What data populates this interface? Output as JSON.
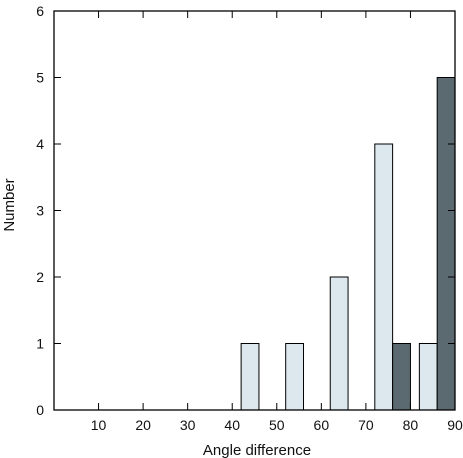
{
  "chart_data": {
    "type": "bar",
    "xlabel": "Angle difference",
    "ylabel": "Number",
    "xlim": [
      0,
      90
    ],
    "ylim": [
      0,
      6
    ],
    "x_ticks": [
      10,
      20,
      30,
      40,
      50,
      60,
      70,
      80,
      90
    ],
    "y_ticks": [
      0,
      1,
      2,
      3,
      4,
      5,
      6
    ],
    "bin_width": 10,
    "colors": {
      "series_a": "#dde8ee",
      "series_b": "#5a6a70",
      "frame": "#000000"
    },
    "series": [
      {
        "color_key": "series_a",
        "bars": [
          {
            "bin": [
              40,
              50
            ],
            "value": 1
          },
          {
            "bin": [
              50,
              60
            ],
            "value": 1
          },
          {
            "bin": [
              60,
              70
            ],
            "value": 2
          },
          {
            "bin": [
              70,
              80
            ],
            "value": 4
          },
          {
            "bin": [
              80,
              90
            ],
            "value": 1
          }
        ]
      },
      {
        "color_key": "series_b",
        "bars": [
          {
            "bin": [
              70,
              80
            ],
            "value": 1
          },
          {
            "bin": [
              80,
              90
            ],
            "value": 5
          }
        ]
      }
    ]
  }
}
